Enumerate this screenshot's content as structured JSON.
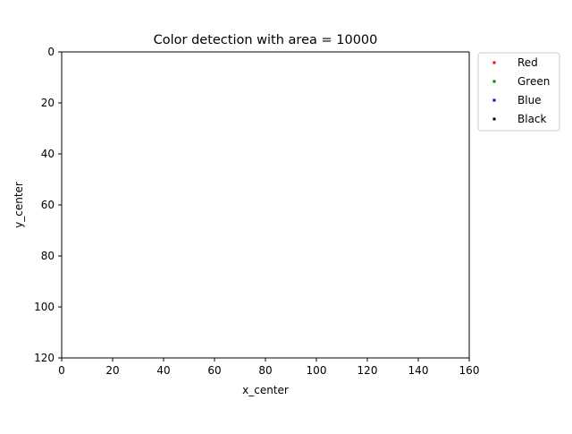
{
  "chart_data": {
    "type": "scatter",
    "title": "Color detection with area = 10000",
    "xlabel": "x_center",
    "ylabel": "y_center",
    "xlim": [
      0,
      160
    ],
    "ylim": [
      120,
      0
    ],
    "y_inverted": true,
    "x_ticks": [
      "0",
      "20",
      "40",
      "60",
      "80",
      "100",
      "120",
      "140",
      "160"
    ],
    "y_ticks": [
      "0",
      "20",
      "40",
      "60",
      "80",
      "100",
      "120"
    ],
    "grid": false,
    "legend_placement": "outside-top-right",
    "series": [
      {
        "name": "Red",
        "color": "#ff0000",
        "points": []
      },
      {
        "name": "Green",
        "color": "#008000",
        "points": []
      },
      {
        "name": "Blue",
        "color": "#0000ff",
        "points": []
      },
      {
        "name": "Black",
        "color": "#000000",
        "points": []
      }
    ]
  }
}
